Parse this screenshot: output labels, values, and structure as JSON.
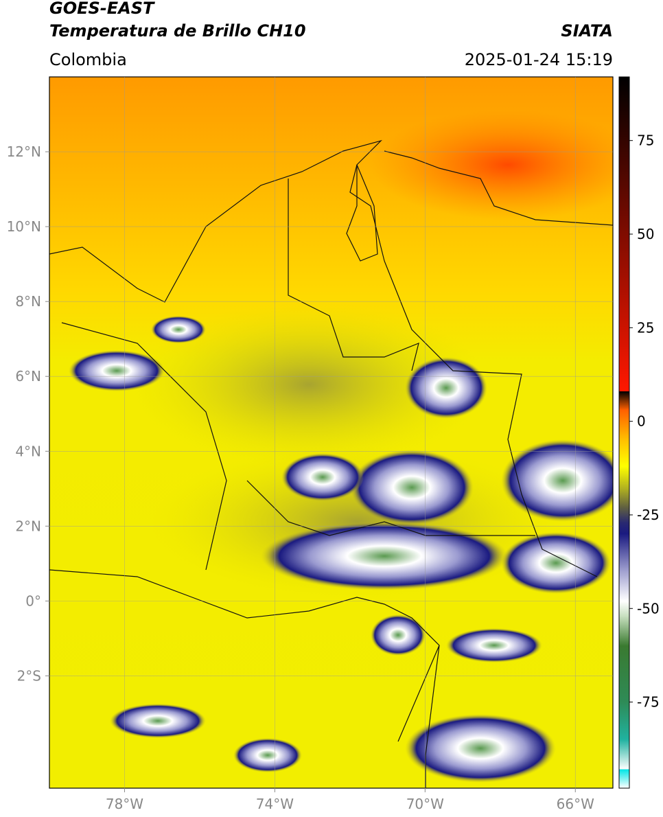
{
  "header": {
    "title": "GOES-EAST",
    "subtitle": "Temperatura de Brillo CH10",
    "source": "SIATA",
    "region": "Colombia",
    "datetime": "2025-01-24 15:19"
  },
  "map": {
    "lonlim": [
      -80,
      -65
    ],
    "latlim": [
      -5,
      14
    ],
    "grid": true,
    "lonticks": [
      {
        "value": -78,
        "label": "78°W"
      },
      {
        "value": -74,
        "label": "74°W"
      },
      {
        "value": -70,
        "label": "70°W"
      },
      {
        "value": -66,
        "label": "66°W"
      }
    ],
    "latticks": [
      {
        "value": 12,
        "label": "12°N"
      },
      {
        "value": 10,
        "label": "10°N"
      },
      {
        "value": 8,
        "label": "8°N"
      },
      {
        "value": 6,
        "label": "6°N"
      },
      {
        "value": 4,
        "label": "4°N"
      },
      {
        "value": 2,
        "label": "2°N"
      },
      {
        "value": 0,
        "label": "0°"
      },
      {
        "value": -2,
        "label": "2°S"
      }
    ]
  },
  "colorbar": {
    "lim": [
      -98,
      92
    ],
    "ticks": [
      75,
      50,
      25,
      0,
      -25,
      -50,
      -75
    ],
    "colormap": [
      {
        "value": -98,
        "color": "#ffffff"
      },
      {
        "value": -93,
        "color": "#ffffff"
      },
      {
        "value": -93,
        "color": "#00e5e5"
      },
      {
        "value": -85,
        "color": "#20b2a0"
      },
      {
        "value": -75,
        "color": "#2e8b57"
      },
      {
        "value": -60,
        "color": "#3a7a30"
      },
      {
        "value": -52,
        "color": "#c8e0c0"
      },
      {
        "value": -48,
        "color": "#ffffff"
      },
      {
        "value": -40,
        "color": "#a0a0d0"
      },
      {
        "value": -30,
        "color": "#1a1a80"
      },
      {
        "value": -27,
        "color": "#2a2a70"
      },
      {
        "value": -23,
        "color": "#606040"
      },
      {
        "value": -18,
        "color": "#b0b020"
      },
      {
        "value": -12,
        "color": "#ffff00"
      },
      {
        "value": -5,
        "color": "#ffc000"
      },
      {
        "value": 3,
        "color": "#ff6000"
      },
      {
        "value": 8,
        "color": "#ff1800"
      },
      {
        "value": 8,
        "color": "#000000"
      },
      {
        "value": 92,
        "color": "#000000"
      }
    ]
  }
}
